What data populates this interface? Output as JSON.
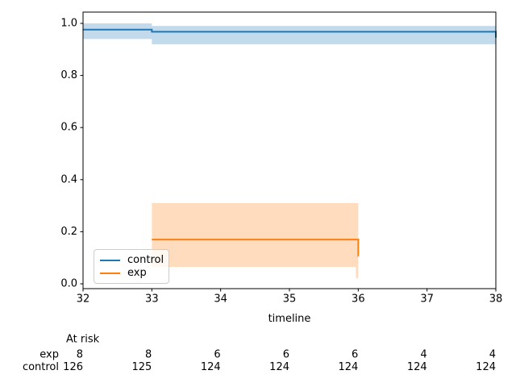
{
  "figure": {
    "background": "#ffffff"
  },
  "chart_data": {
    "type": "line",
    "subtype": "kaplan-meier-step-with-ci",
    "title": "",
    "xlabel": "timeline",
    "ylabel": "",
    "grid": false,
    "xlim": [
      32,
      38
    ],
    "ylim": [
      -0.02,
      1.04
    ],
    "x_ticks": [
      32,
      33,
      34,
      35,
      36,
      37,
      38
    ],
    "x_tick_labels": [
      "32",
      "33",
      "34",
      "35",
      "36",
      "37",
      "38"
    ],
    "y_ticks": [
      0.0,
      0.2,
      0.4,
      0.6,
      0.8,
      1.0
    ],
    "y_tick_labels": [
      "0.0",
      "0.2",
      "0.4",
      "0.6",
      "0.8",
      "1.0"
    ],
    "legend_position": "lower left",
    "series": [
      {
        "name": "control",
        "color": "#1f77b4",
        "step_points": [
          [
            32,
            0.976
          ],
          [
            33,
            0.976
          ],
          [
            33,
            0.968
          ],
          [
            38,
            0.968
          ],
          [
            38,
            0.945
          ]
        ],
        "ci_band": [
          {
            "x0": 32,
            "x1": 33,
            "lo": 0.94,
            "hi": 1.0
          },
          {
            "x0": 33,
            "x1": 38,
            "lo": 0.92,
            "hi": 0.99
          }
        ]
      },
      {
        "name": "exp",
        "color": "#ff7f0e",
        "step_points": [
          [
            33,
            0.17
          ],
          [
            36,
            0.17
          ],
          [
            36,
            0.105
          ]
        ],
        "ci_band": [
          {
            "x0": 33,
            "x1": 36,
            "lo": 0.065,
            "hi": 0.31
          },
          {
            "x0": 35.965,
            "x1": 36,
            "lo": 0.022,
            "hi": 0.065
          }
        ]
      }
    ],
    "at_risk_table": {
      "header": "At risk",
      "rows": [
        {
          "label": "exp",
          "values": [
            "8",
            "8",
            "6",
            "6",
            "6",
            "4",
            "4"
          ]
        },
        {
          "label": "control",
          "values": [
            "126",
            "125",
            "124",
            "124",
            "124",
            "124",
            "124"
          ]
        }
      ]
    }
  }
}
